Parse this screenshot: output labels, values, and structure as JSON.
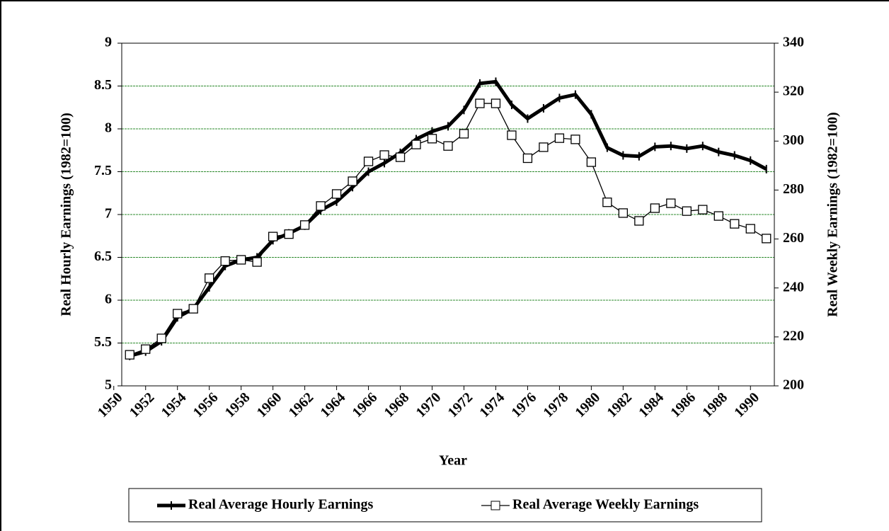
{
  "chart_data": {
    "type": "line",
    "x_label": "Year",
    "y_label": "Real Hourly Earnings (1982=100)",
    "y2_label": "Real Weekly Earnings (1982=100)",
    "x": [
      1951,
      1952,
      1953,
      1954,
      1955,
      1956,
      1957,
      1958,
      1959,
      1960,
      1961,
      1962,
      1963,
      1964,
      1965,
      1966,
      1967,
      1968,
      1969,
      1970,
      1971,
      1972,
      1973,
      1974,
      1975,
      1976,
      1977,
      1978,
      1979,
      1980,
      1981,
      1982,
      1983,
      1984,
      1985,
      1986,
      1987,
      1988,
      1989,
      1990,
      1991
    ],
    "series": [
      {
        "name": "Real Average Hourly Earnings",
        "color": "#000000",
        "marker": "plus",
        "values": [
          5.35,
          5.4,
          5.52,
          5.8,
          5.9,
          6.15,
          6.4,
          6.47,
          6.5,
          6.7,
          6.78,
          6.87,
          7.05,
          7.15,
          7.32,
          7.5,
          7.6,
          7.72,
          7.88,
          7.97,
          8.03,
          8.22,
          8.53,
          8.55,
          8.28,
          8.12,
          8.24,
          8.36,
          8.4,
          8.17,
          7.78,
          7.69,
          7.68,
          7.79,
          7.8,
          7.77,
          7.8,
          7.73,
          7.69,
          7.63,
          7.53
        ]
      },
      {
        "name": "Real Average Weekly Earnings",
        "color": "#000000",
        "marker": "square",
        "axis": "y2",
        "values": [
          212.7,
          215,
          219.4,
          229.5,
          231.5,
          244,
          251,
          251.5,
          250.6,
          261,
          262,
          265.7,
          273.5,
          278.4,
          283.6,
          291.7,
          294.3,
          293.4,
          298.6,
          301,
          298,
          303,
          315.4,
          315.4,
          302.4,
          293,
          297.5,
          301.2,
          300.7,
          291.4,
          275,
          270.6,
          267.4,
          272.6,
          274.6,
          271.4,
          272,
          269.4,
          266.2,
          264.2,
          260.2
        ]
      }
    ],
    "xlim": [
      1950.5,
      1991.5
    ],
    "xticks": [
      1950,
      1952,
      1954,
      1956,
      1958,
      1960,
      1962,
      1964,
      1966,
      1968,
      1970,
      1972,
      1974,
      1976,
      1978,
      1980,
      1982,
      1984,
      1986,
      1988,
      1990
    ],
    "ylim": [
      5,
      9
    ],
    "yticks": [
      5,
      5.5,
      6,
      6.5,
      7,
      7.5,
      8,
      8.5,
      9
    ],
    "y2lim": [
      200,
      340
    ],
    "y2ticks": [
      200,
      220,
      240,
      260,
      280,
      300,
      320,
      340
    ],
    "grid": true,
    "grid_color": "#2e8b2e",
    "legend": "bottom"
  }
}
